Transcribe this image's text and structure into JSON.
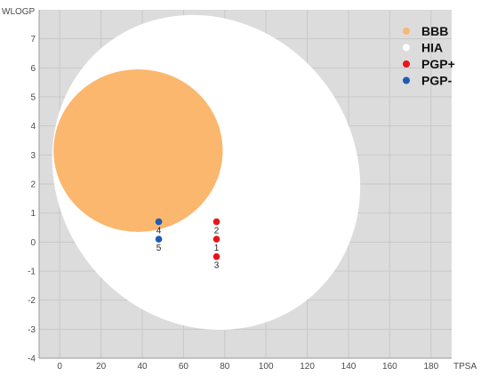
{
  "chart_data": {
    "type": "scatter",
    "title": "",
    "xlabel": "TPSA",
    "ylabel": "WLOGP",
    "xlim": [
      -10,
      190
    ],
    "ylim": [
      -4,
      8
    ],
    "xticks": [
      0,
      20,
      40,
      60,
      80,
      100,
      120,
      140,
      160,
      180
    ],
    "yticks": [
      -4,
      -3,
      -2,
      -1,
      0,
      1,
      2,
      3,
      4,
      5,
      6,
      7
    ],
    "grid": true,
    "legend_position": "top-right",
    "regions": [
      {
        "name": "HIA",
        "shape": "ellipse",
        "color": "#ffffff",
        "cx": 71,
        "cy": 2.4,
        "rx": 72,
        "ry": 5.6,
        "rotation_deg": -38
      },
      {
        "name": "BBB",
        "shape": "ellipse",
        "color": "#fbb76e",
        "cx": 38,
        "cy": 3.15,
        "rx": 41,
        "ry": 2.8,
        "rotation_deg": 0
      }
    ],
    "series": [
      {
        "name": "PGP+",
        "color": "#e8141b",
        "points": [
          {
            "label": "1",
            "x": 76,
            "y": 0.1
          },
          {
            "label": "2",
            "x": 76,
            "y": 0.7
          },
          {
            "label": "3",
            "x": 76,
            "y": -0.5
          }
        ]
      },
      {
        "name": "PGP-",
        "color": "#1f5bb5",
        "points": [
          {
            "label": "4",
            "x": 48,
            "y": 0.7
          },
          {
            "label": "5",
            "x": 48,
            "y": 0.1
          }
        ]
      }
    ],
    "legend": [
      {
        "name": "BBB",
        "color": "#fbb76e"
      },
      {
        "name": "HIA",
        "color": "#ffffff"
      },
      {
        "name": "PGP+",
        "color": "#e8141b"
      },
      {
        "name": "PGP-",
        "color": "#1f5bb5"
      }
    ]
  }
}
